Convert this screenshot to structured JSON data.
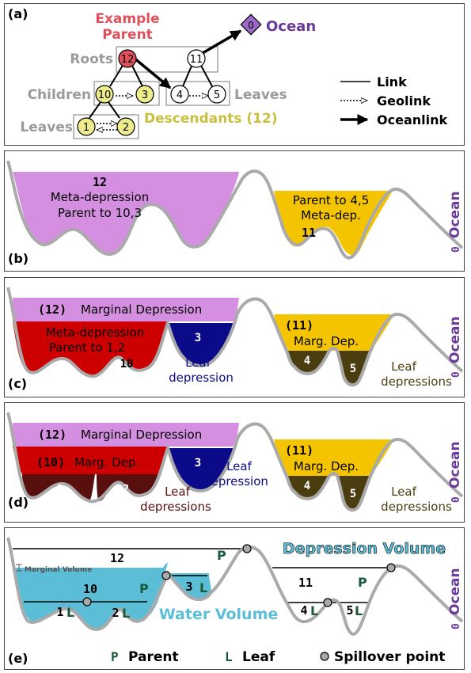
{
  "panels": {
    "a": {
      "label": "(a)",
      "example_parent": [
        "Example",
        "Parent"
      ],
      "ocean_label": "Ocean",
      "ocean_node": "0",
      "row_roots": "Roots",
      "row_children": "Children",
      "row_leaves_left": "Leaves",
      "row_leaves_right": "Leaves",
      "descendants": "Descendants (12)",
      "nodes": {
        "n12": "12",
        "n11": "11",
        "n10": "10",
        "n3": "3",
        "n4": "4",
        "n5": "5",
        "n1": "1",
        "n2": "2"
      },
      "legend": [
        "Link",
        "Geolink",
        "Oceanlink"
      ],
      "colors": {
        "parent": "#e0505a",
        "child": "#ecec8c",
        "ocean": "#9b6ac8",
        "descendants": "#c9c040",
        "row_label": "#9a9a9a"
      }
    },
    "b": {
      "label": "(b)",
      "left_num": "12",
      "left_text": [
        "Meta-depression",
        "Parent to 10,3"
      ],
      "right_text": [
        "Parent to 4,5",
        "Meta-dep."
      ],
      "right_num": "11",
      "ocean": "Ocean",
      "ocean_num": "0"
    },
    "c": {
      "label": "(c)",
      "marginal_num": "(12)",
      "marginal_text": "Marginal Depression",
      "meta_text": [
        "Meta-depression",
        "Parent to 1,2"
      ],
      "meta_num": "10",
      "leaf3_num": "3",
      "leaf3_text": [
        "Leaf",
        "depression"
      ],
      "right_num": "(11)",
      "right_text": "Marg. Dep.",
      "leaf4": "4",
      "leaf5": "5",
      "right_leaf_text": [
        "Leaf",
        "depressions"
      ],
      "ocean": "Ocean",
      "ocean_num": "0"
    },
    "d": {
      "label": "(d)",
      "marginal_num": "(12)",
      "marginal_text": "Marginal Depression",
      "mid_num": "(10)",
      "mid_text": "Marg. Dep.",
      "leaf1": "1",
      "leaf2": "2",
      "leaf12_text": [
        "Leaf",
        "depressions"
      ],
      "leaf3_num": "3",
      "leaf3_text": [
        "Leaf",
        "depression"
      ],
      "right_num": "(11)",
      "right_text": "Marg. Dep.",
      "leaf4": "4",
      "leaf5": "5",
      "right_leaf_text": [
        "Leaf",
        "depressions"
      ],
      "ocean": "Ocean",
      "ocean_num": "0"
    },
    "e": {
      "label": "(e)",
      "n12": "12",
      "marginal_volume": "Marginal Volume",
      "n10": "10",
      "n3": "3",
      "n1": "1",
      "n2": "2",
      "n11": "11",
      "n4": "4",
      "n5": "5",
      "P": "P",
      "L": "L",
      "depression_volume": "Depression Volume",
      "water_volume": "Water Volume",
      "ocean": "Ocean",
      "ocean_num": "0",
      "legend": {
        "parent_sym": "P",
        "parent": "Parent",
        "leaf_sym": "L",
        "leaf": "Leaf",
        "spill": "Spillover point"
      },
      "colors": {
        "water": "#5bbdd6",
        "symbol": "#1a5a3a"
      }
    }
  },
  "colors": {
    "meta": "#d58fe0",
    "yellow": "#f5c400",
    "red": "#cc0000",
    "darkred": "#5a0f0f",
    "blue": "#0b0b8a",
    "darkolive": "#4a3e10",
    "ocean_text": "#6a3a9a",
    "terrain": "#aaaaaa"
  }
}
